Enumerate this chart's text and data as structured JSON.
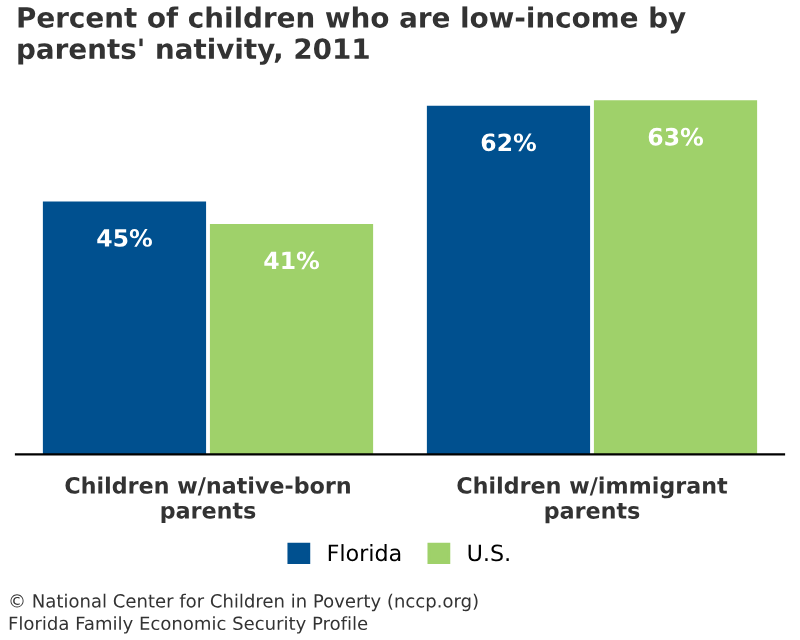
{
  "chart_data": {
    "type": "bar",
    "title": "Percent of children who are low-income by\nparents' nativity, 2011",
    "categories": [
      "Children w/native-born\nparents",
      "Children w/immigrant\nparents"
    ],
    "series": [
      {
        "name": "Florida",
        "color": "#00508f",
        "values": [
          45,
          62
        ],
        "value_labels": [
          "45%",
          "62%"
        ]
      },
      {
        "name": "U.S.",
        "color": "#9fd16a",
        "values": [
          41,
          63
        ],
        "value_labels": [
          "41%",
          "63%"
        ]
      }
    ],
    "legend": "bottom",
    "grid": false,
    "annotations": [
      "© National Center for Children in Poverty (nccp.org)",
      "Florida Family Economic Security Profile"
    ]
  }
}
